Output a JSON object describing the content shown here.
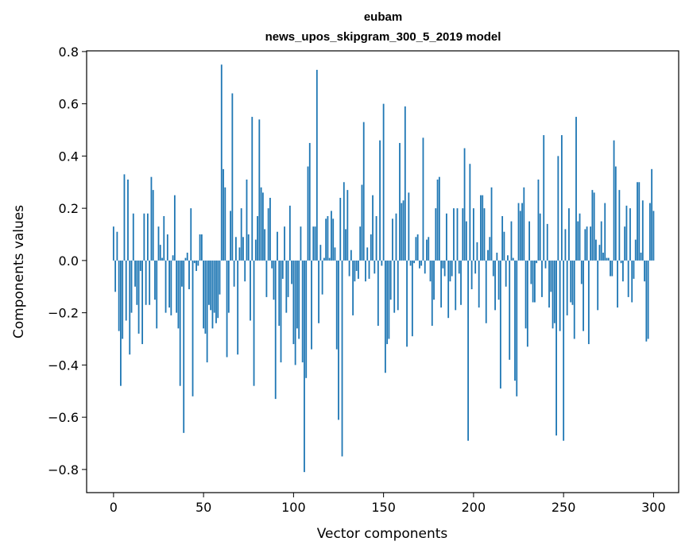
{
  "chart_data": {
    "type": "bar",
    "title": "eubam",
    "subtitle": "news_upos_skipgram_300_5_2019 model",
    "xlabel": "Vector components",
    "ylabel": "Components values",
    "xlim": [
      -14.95,
      313.95
    ],
    "ylim": [
      -0.8886,
      0.8027
    ],
    "xticks": [
      0,
      50,
      100,
      150,
      200,
      250,
      300
    ],
    "xtick_labels": [
      "0",
      "50",
      "100",
      "150",
      "200",
      "250",
      "300"
    ],
    "yticks": [
      -0.8,
      -0.6,
      -0.4,
      -0.2,
      0.0,
      0.2,
      0.4,
      0.6,
      0.8
    ],
    "ytick_labels": [
      "−0.8",
      "−0.6",
      "−0.4",
      "−0.2",
      "0.0",
      "0.2",
      "0.4",
      "0.6",
      "0.8"
    ],
    "grid": false,
    "bar_color": "#1f77b4",
    "x_start": 0,
    "values": [
      0.13,
      -0.12,
      0.11,
      -0.27,
      -0.48,
      -0.3,
      0.33,
      -0.23,
      0.31,
      -0.36,
      -0.2,
      0.18,
      -0.1,
      -0.17,
      -0.28,
      -0.04,
      -0.32,
      0.18,
      -0.17,
      0.18,
      -0.17,
      0.32,
      0.27,
      -0.15,
      -0.26,
      0.13,
      0.06,
      0.01,
      0.17,
      -0.2,
      0.1,
      -0.18,
      -0.21,
      0.02,
      0.25,
      -0.2,
      -0.26,
      -0.48,
      -0.1,
      -0.66,
      0.01,
      0.03,
      -0.11,
      0.2,
      -0.52,
      -0.01,
      -0.04,
      -0.02,
      0.1,
      0.1,
      -0.26,
      -0.28,
      -0.39,
      -0.17,
      -0.19,
      -0.26,
      -0.2,
      -0.24,
      -0.22,
      -0.13,
      0.75,
      0.35,
      0.28,
      -0.37,
      -0.2,
      0.19,
      0.64,
      -0.1,
      0.09,
      -0.36,
      0.05,
      0.2,
      0.09,
      -0.08,
      0.31,
      0.1,
      -0.23,
      0.55,
      -0.48,
      0.08,
      0.17,
      0.54,
      0.28,
      0.26,
      0.12,
      -0.14,
      0.2,
      0.24,
      -0.03,
      -0.15,
      -0.53,
      0.11,
      -0.25,
      -0.39,
      -0.07,
      0.13,
      -0.2,
      -0.14,
      0.21,
      -0.09,
      -0.32,
      -0.4,
      -0.26,
      -0.3,
      0.13,
      -0.39,
      -0.81,
      -0.45,
      0.36,
      0.45,
      -0.34,
      0.13,
      0.13,
      0.73,
      -0.24,
      0.06,
      -0.13,
      0.01,
      0.16,
      0.17,
      0.01,
      0.19,
      0.16,
      0.05,
      -0.34,
      -0.61,
      0.24,
      -0.75,
      0.3,
      0.12,
      0.27,
      -0.06,
      0.04,
      -0.21,
      -0.08,
      -0.04,
      -0.07,
      0.13,
      0.29,
      0.53,
      -0.08,
      0.05,
      -0.07,
      0.1,
      0.25,
      -0.05,
      0.17,
      -0.25,
      0.46,
      -0.02,
      0.6,
      -0.43,
      -0.32,
      -0.3,
      -0.15,
      0.16,
      -0.2,
      0.18,
      -0.19,
      0.45,
      0.22,
      0.23,
      0.59,
      -0.33,
      0.26,
      -0.02,
      -0.29,
      -0.01,
      0.09,
      0.1,
      -0.03,
      -0.02,
      0.47,
      -0.05,
      0.08,
      0.09,
      -0.08,
      -0.25,
      -0.15,
      0.2,
      0.31,
      0.32,
      -0.18,
      -0.03,
      -0.06,
      0.18,
      -0.22,
      -0.08,
      -0.06,
      0.2,
      -0.19,
      0.2,
      -0.05,
      -0.17,
      0.2,
      0.43,
      0.15,
      -0.69,
      0.37,
      -0.11,
      0.2,
      -0.05,
      0.07,
      -0.18,
      0.25,
      0.25,
      0.2,
      -0.24,
      0.04,
      0.09,
      0.28,
      -0.06,
      -0.19,
      0.03,
      -0.15,
      -0.49,
      0.17,
      0.11,
      -0.1,
      0.02,
      -0.38,
      0.15,
      0.01,
      -0.46,
      -0.52,
      0.22,
      0.19,
      0.22,
      0.28,
      -0.26,
      -0.33,
      0.15,
      -0.09,
      -0.16,
      -0.16,
      -0.01,
      0.31,
      0.18,
      -0.14,
      0.48,
      -0.03,
      0.14,
      -0.18,
      -0.12,
      -0.26,
      -0.24,
      -0.67,
      0.4,
      -0.27,
      0.48,
      -0.69,
      0.12,
      -0.21,
      0.2,
      -0.16,
      -0.17,
      -0.3,
      0.55,
      0.15,
      0.18,
      -0.09,
      -0.27,
      0.12,
      0.13,
      -0.32,
      0.13,
      0.27,
      0.26,
      0.08,
      -0.19,
      0.06,
      0.15,
      0.03,
      0.22,
      0.01,
      0.01,
      -0.06,
      -0.06,
      0.46,
      0.36,
      -0.18,
      0.27,
      -0.01,
      -0.08,
      0.13,
      0.21,
      -0.14,
      0.2,
      -0.16,
      -0.07,
      0.08,
      0.3,
      0.3,
      0.03,
      0.23,
      -0.08,
      -0.31,
      -0.3,
      0.22,
      0.35,
      0.19
    ]
  }
}
